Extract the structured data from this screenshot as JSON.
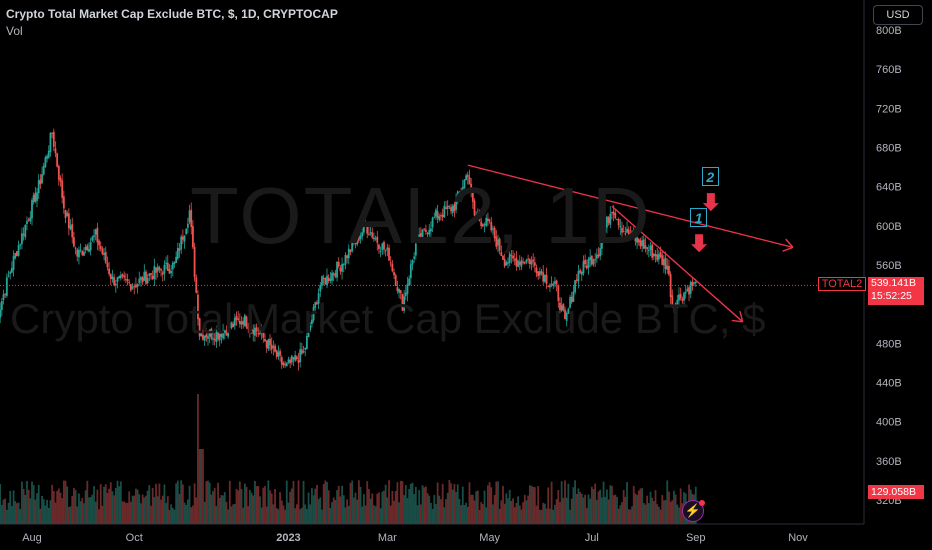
{
  "header": {
    "title": "Crypto Total Market Cap Exclude BTC, $, 1D, CRYPTOCAP",
    "volume_label": "Vol"
  },
  "currency_button": "USD",
  "watermark": {
    "symbol": "TOTAL2, 1D",
    "description": "Crypto Total Market Cap Exclude BTC, $"
  },
  "price_labels": {
    "ticker": "TOTAL2",
    "last_price": "539.141B",
    "countdown": "15:52:25",
    "last_volume": "129.058B"
  },
  "annotations": {
    "box_1": "1",
    "box_2": "2"
  },
  "colors": {
    "up": "#26a69a",
    "down": "#ef5350",
    "trendline": "#e8344a",
    "annotation_box": "#2ea8c9",
    "price_label": "#f23645"
  },
  "chart_data": {
    "type": "candlestick",
    "title": "Crypto Total Market Cap Exclude BTC, $, 1D, CRYPTOCAP",
    "x_tick_labels": [
      "Aug",
      "Oct",
      "2023",
      "Mar",
      "May",
      "Jul",
      "Sep",
      "Nov"
    ],
    "y_tick_labels": [
      "800B",
      "760B",
      "720B",
      "680B",
      "640B",
      "600B",
      "560B",
      "480B",
      "440B",
      "400B",
      "360B",
      "320B"
    ],
    "ylim": [
      310,
      800
    ],
    "y_ticks": [
      800,
      760,
      720,
      680,
      640,
      600,
      560,
      480,
      440,
      400,
      360,
      320
    ],
    "last_price": 539.141,
    "last_volume": 129.058,
    "price_anchors": [
      [
        "2022-07-10",
        500
      ],
      [
        "2022-07-20",
        560
      ],
      [
        "2022-07-28",
        600
      ],
      [
        "2022-08-05",
        640
      ],
      [
        "2022-08-13",
        695
      ],
      [
        "2022-08-20",
        620
      ],
      [
        "2022-08-28",
        570
      ],
      [
        "2022-09-08",
        590
      ],
      [
        "2022-09-18",
        545
      ],
      [
        "2022-10-01",
        540
      ],
      [
        "2022-10-10",
        550
      ],
      [
        "2022-10-25",
        560
      ],
      [
        "2022-11-03",
        615
      ],
      [
        "2022-11-09",
        490
      ],
      [
        "2022-11-20",
        490
      ],
      [
        "2022-12-05",
        505
      ],
      [
        "2022-12-15",
        490
      ],
      [
        "2022-12-30",
        455
      ],
      [
        "2023-01-10",
        470
      ],
      [
        "2023-01-20",
        540
      ],
      [
        "2023-02-01",
        560
      ],
      [
        "2023-02-16",
        600
      ],
      [
        "2023-03-02",
        570
      ],
      [
        "2023-03-10",
        520
      ],
      [
        "2023-03-18",
        580
      ],
      [
        "2023-03-30",
        610
      ],
      [
        "2023-04-10",
        620
      ],
      [
        "2023-04-18",
        655
      ],
      [
        "2023-04-22",
        610
      ],
      [
        "2023-05-01",
        600
      ],
      [
        "2023-05-10",
        565
      ],
      [
        "2023-05-25",
        565
      ],
      [
        "2023-06-10",
        535
      ],
      [
        "2023-06-15",
        500
      ],
      [
        "2023-06-22",
        550
      ],
      [
        "2023-07-05",
        575
      ],
      [
        "2023-07-13",
        620
      ],
      [
        "2023-07-20",
        595
      ],
      [
        "2023-08-01",
        580
      ],
      [
        "2023-08-15",
        560
      ],
      [
        "2023-08-18",
        520
      ],
      [
        "2023-08-30",
        540
      ],
      [
        "2023-09-01",
        539
      ]
    ],
    "trendlines": [
      {
        "name": "trendline-upper",
        "from": [
          "2023-04-18",
          662
        ],
        "to": [
          "2023-10-29",
          578
        ]
      },
      {
        "name": "trendline-lower",
        "from": [
          "2023-07-13",
          620
        ],
        "to": [
          "2023-09-29",
          502
        ]
      }
    ],
    "arrows": [
      {
        "name": "arrow-2",
        "date": "2023-09-10",
        "price": 615
      },
      {
        "name": "arrow-1",
        "date": "2023-09-03",
        "price": 573
      }
    ]
  }
}
